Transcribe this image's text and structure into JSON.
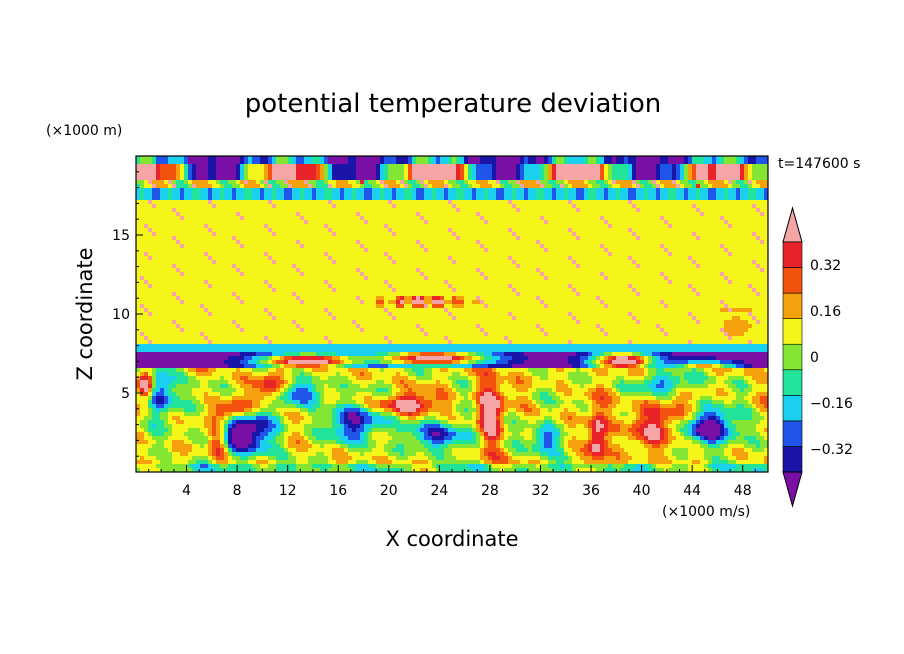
{
  "chart_data": {
    "type": "heatmap",
    "title": "potential temperature deviation",
    "xlabel": "X coordinate",
    "ylabel": "Z coordinate",
    "x_units": "(×1000 m/s)",
    "y_units": "(×1000 m)",
    "time_label": "t=147600 s",
    "xlim": [
      0,
      50
    ],
    "ylim": [
      0,
      20
    ],
    "x_ticks": [
      4,
      8,
      12,
      16,
      20,
      24,
      28,
      32,
      36,
      40,
      44,
      48
    ],
    "y_ticks": [
      5,
      10,
      15
    ],
    "colorbar": {
      "levels": [
        -0.4,
        -0.32,
        -0.24,
        -0.16,
        -0.08,
        0,
        0.08,
        0.16,
        0.24,
        0.32,
        0.4
      ],
      "labels": [
        "0.32",
        "0.16",
        "0",
        "−0.16",
        "−0.32"
      ],
      "label_values": [
        0.32,
        0.16,
        0,
        -0.16,
        -0.32
      ],
      "colors": [
        "#7a0fa6",
        "#1a14a8",
        "#1f55e8",
        "#19d0ee",
        "#22e39a",
        "#84e632",
        "#f6f51a",
        "#f5a10d",
        "#f2520e",
        "#e8242a",
        "#f5a5a5"
      ],
      "extend": "both"
    }
  }
}
